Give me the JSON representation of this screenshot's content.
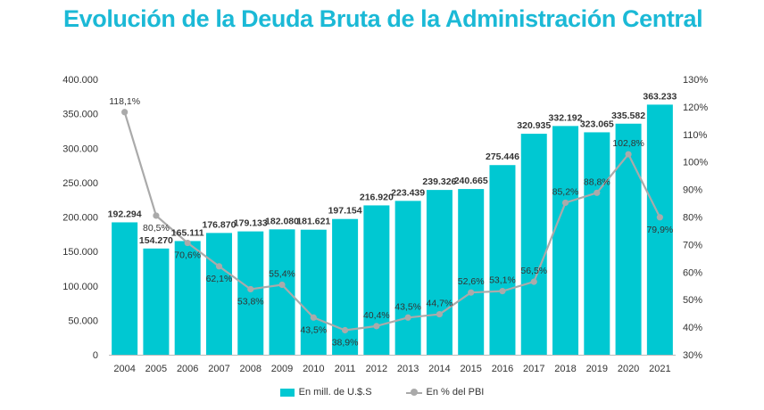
{
  "colors": {
    "title": "#1bb9d6",
    "bar": "#00c8d2",
    "line": "#aaaaaa"
  },
  "chart_data": {
    "type": "bar",
    "title": "Evolución de la Deuda Bruta de la Administración Central",
    "categories": [
      "2004",
      "2005",
      "2006",
      "2007",
      "2008",
      "2009",
      "2010",
      "2011",
      "2012",
      "2013",
      "2014",
      "2015",
      "2016",
      "2017",
      "2018",
      "2019",
      "2020",
      "2021"
    ],
    "series": [
      {
        "name": "En mill. de U.$.S",
        "type": "bar",
        "axis": "left",
        "values": [
          192294,
          154270,
          165111,
          176870,
          179133,
          182080,
          181621,
          197154,
          216920,
          223439,
          239326,
          240665,
          275446,
          320935,
          332192,
          323065,
          335582,
          363233
        ],
        "labels": [
          "192.294",
          "154.270",
          "165.111",
          "176.870",
          "179.133",
          "182.080",
          "181.621",
          "197.154",
          "216.920",
          "223.439",
          "239.326",
          "240.665",
          "275.446",
          "320.935",
          "332.192",
          "323.065",
          "335.582",
          "363.233"
        ]
      },
      {
        "name": "En % del PBI",
        "type": "line",
        "axis": "right",
        "values": [
          118.1,
          80.5,
          70.6,
          62.1,
          53.8,
          55.4,
          43.5,
          38.9,
          40.4,
          43.5,
          44.7,
          52.6,
          53.1,
          56.5,
          85.2,
          88.8,
          102.8,
          79.9
        ],
        "labels": [
          "118,1%",
          "80,5%",
          "70,6%",
          "62,1%",
          "53,8%",
          "55,4%",
          "43,5%",
          "38,9%",
          "40,4%",
          "43,5%",
          "44,7%",
          "52,6%",
          "53,1%",
          "56,5%",
          "85,2%",
          "88,8%",
          "102,8%",
          "79,9%"
        ]
      }
    ],
    "y_left": {
      "min": 0,
      "max": 400000,
      "ticks": [
        "0",
        "50.000",
        "100.000",
        "150.000",
        "200.000",
        "250.000",
        "300.000",
        "350.000",
        "400.000"
      ]
    },
    "y_right": {
      "min": 30,
      "max": 130,
      "ticks": [
        "30%",
        "40%",
        "50%",
        "60%",
        "70%",
        "80%",
        "90%",
        "100%",
        "110%",
        "120%",
        "130%"
      ]
    },
    "grid": false,
    "legend_position": "bottom-center"
  }
}
